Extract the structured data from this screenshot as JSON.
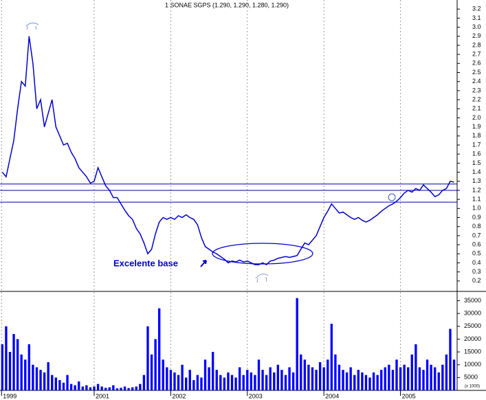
{
  "chart_data": {
    "type": "line",
    "title": "1 SONAE SGPS (1.290, 1.290, 1.280, 1.290)",
    "annotation": "Excelente base",
    "y2_label": "(x 1000)",
    "x": [
      1999.8,
      1999.85,
      1999.9,
      1999.95,
      2000.0,
      2000.05,
      2000.1,
      2000.15,
      2000.2,
      2000.25,
      2000.3,
      2000.35,
      2000.4,
      2000.45,
      2000.5,
      2000.55,
      2000.6,
      2000.65,
      2000.7,
      2000.75,
      2000.8,
      2000.85,
      2000.9,
      2000.95,
      2001.0,
      2001.05,
      2001.1,
      2001.15,
      2001.2,
      2001.25,
      2001.3,
      2001.35,
      2001.4,
      2001.45,
      2001.5,
      2001.55,
      2001.6,
      2001.65,
      2001.7,
      2001.75,
      2001.8,
      2001.85,
      2001.9,
      2001.95,
      2002.0,
      2002.05,
      2002.1,
      2002.15,
      2002.2,
      2002.25,
      2002.3,
      2002.35,
      2002.4,
      2002.45,
      2002.5,
      2002.55,
      2002.6,
      2002.65,
      2002.7,
      2002.75,
      2002.8,
      2002.85,
      2002.9,
      2002.95,
      2003.0,
      2003.05,
      2003.1,
      2003.15,
      2003.2,
      2003.25,
      2003.3,
      2003.35,
      2003.4,
      2003.45,
      2003.5,
      2003.55,
      2003.6,
      2003.65,
      2003.7,
      2003.75,
      2003.8,
      2003.85,
      2003.9,
      2003.95,
      2004.0,
      2004.05,
      2004.1,
      2004.15,
      2004.2,
      2004.25,
      2004.3,
      2004.35,
      2004.4,
      2004.45,
      2004.5,
      2004.55,
      2004.6,
      2004.65,
      2004.7,
      2004.75,
      2004.8,
      2004.85,
      2004.9,
      2004.95,
      2005.0,
      2005.05,
      2005.1,
      2005.15,
      2005.2,
      2005.25,
      2005.3,
      2005.35,
      2005.4,
      2005.45,
      2005.5,
      2005.55,
      2005.6,
      2005.65,
      2005.7
    ],
    "series": [
      {
        "color": "#0000cc",
        "values": [
          1.4,
          1.35,
          1.55,
          1.75,
          2.1,
          2.4,
          2.35,
          2.9,
          2.6,
          2.1,
          2.2,
          1.9,
          2.05,
          2.2,
          1.9,
          1.8,
          1.7,
          1.72,
          1.62,
          1.55,
          1.45,
          1.4,
          1.35,
          1.28,
          1.3,
          1.45,
          1.35,
          1.25,
          1.2,
          1.12,
          1.12,
          1.05,
          0.98,
          0.92,
          0.88,
          0.78,
          0.72,
          0.62,
          0.5,
          0.55,
          0.72,
          0.85,
          0.9,
          0.88,
          0.9,
          0.88,
          0.92,
          0.9,
          0.93,
          0.9,
          0.88,
          0.82,
          0.68,
          0.58,
          0.55,
          0.52,
          0.5,
          0.47,
          0.44,
          0.4,
          0.42,
          0.41,
          0.43,
          0.41,
          0.42,
          0.4,
          0.38,
          0.38,
          0.4,
          0.38,
          0.42,
          0.43,
          0.45,
          0.46,
          0.47,
          0.46,
          0.47,
          0.48,
          0.55,
          0.62,
          0.6,
          0.65,
          0.7,
          0.8,
          0.9,
          0.97,
          1.05,
          1.0,
          0.95,
          0.96,
          0.93,
          0.9,
          0.88,
          0.9,
          0.87,
          0.85,
          0.87,
          0.9,
          0.93,
          0.97,
          1.0,
          1.03,
          1.05,
          1.08,
          1.12,
          1.17,
          1.2,
          1.18,
          1.22,
          1.2,
          1.26,
          1.22,
          1.18,
          1.13,
          1.15,
          1.2,
          1.22,
          1.3,
          1.29
        ]
      },
      {
        "type": "bar",
        "axis": "y2",
        "color": "#0000ff",
        "values": [
          18000,
          25000,
          15000,
          22000,
          20000,
          14000,
          12000,
          18000,
          10000,
          9000,
          8000,
          7000,
          11000,
          6000,
          5000,
          4000,
          3000,
          6000,
          2500,
          2000,
          3500,
          1500,
          2000,
          1200,
          1500,
          2500,
          1500,
          1000,
          1200,
          2000,
          800,
          1000,
          1500,
          900,
          1200,
          1500,
          2500,
          6000,
          25000,
          14000,
          20000,
          32000,
          12000,
          9000,
          8000,
          7000,
          6000,
          10000,
          5000,
          8000,
          4000,
          6000,
          5000,
          12000,
          9000,
          15000,
          8000,
          6000,
          5000,
          7000,
          6000,
          5000,
          9000,
          6000,
          8000,
          7000,
          6000,
          12000,
          8000,
          6000,
          9000,
          7000,
          10000,
          8000,
          6000,
          9000,
          7000,
          36000,
          14000,
          12000,
          10000,
          9000,
          8000,
          11000,
          9000,
          12000,
          26000,
          14000,
          10000,
          8000,
          7000,
          9000,
          6000,
          8000,
          7000,
          6000,
          5000,
          7000,
          6000,
          8000,
          9000,
          10000,
          8000,
          12000,
          9000,
          10000,
          9000,
          14000,
          18000,
          9000,
          8000,
          12000,
          10000,
          9000,
          7000,
          10000,
          14000,
          24000,
          12000
        ]
      }
    ],
    "hlines": [
      1.27,
      1.2,
      1.07
    ],
    "hline_color": "#000099",
    "xlim": [
      1999.77,
      2005.74
    ],
    "xticks": [
      {
        "value": 1999.79,
        "label": "1999"
      },
      2001,
      2002,
      2003,
      2004,
      2005
    ],
    "ylim": [
      0.1,
      3.3
    ],
    "yticks": [
      0.2,
      0.3,
      0.4,
      0.5,
      0.6,
      0.7,
      0.8,
      0.9,
      {
        "value": 1,
        "label": "1.0"
      },
      1.1,
      1.2,
      1.3,
      1.4,
      1.5,
      1.6,
      1.7,
      1.8,
      1.9,
      {
        "value": 2,
        "label": "2.0"
      },
      2.1,
      2.2,
      2.3,
      2.4,
      2.5,
      2.6,
      2.7,
      2.8,
      2.9,
      {
        "value": 3,
        "label": "3.0"
      },
      3.1,
      3.2
    ],
    "y2lim": [
      0,
      37000
    ],
    "y2ticks": [
      5000,
      10000,
      15000,
      20000,
      25000,
      30000,
      35000
    ],
    "grid": true
  }
}
